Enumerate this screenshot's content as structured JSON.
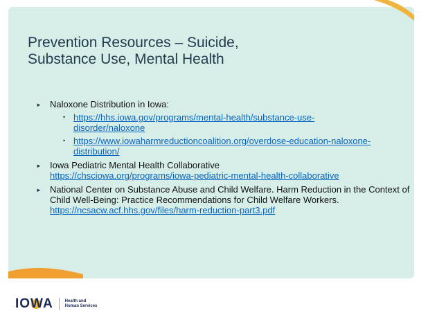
{
  "slide": {
    "title_lines": [
      "Prevention Resources – Suicide,",
      "Substance Use, Mental Health"
    ],
    "bullets": [
      {
        "text": "Naloxone Distribution in Iowa:",
        "links": [
          "https://hhs.iowa.gov/programs/mental-health/substance-use-disorder/naloxone",
          "https://www.iowaharmreductioncoalition.org/overdose-education-naloxone-distribution/"
        ]
      },
      {
        "text": "Iowa Pediatric Mental Health Collaborative",
        "link": "https://chsciowa.org/programs/iowa-pediatric-mental-health-collaborative"
      },
      {
        "text": "National Center on Substance Abuse and Child Welfare. Harm Reduction in the Context of Child Well-Being: Practice Recommendations for Child Welfare Workers.",
        "link": "https://ncsacw.acf.hhs.gov/files/harm-reduction-part3.pdf"
      }
    ]
  },
  "footer": {
    "logo": "IOWA",
    "org_line1": "Health and",
    "org_line2": "Human Services"
  }
}
